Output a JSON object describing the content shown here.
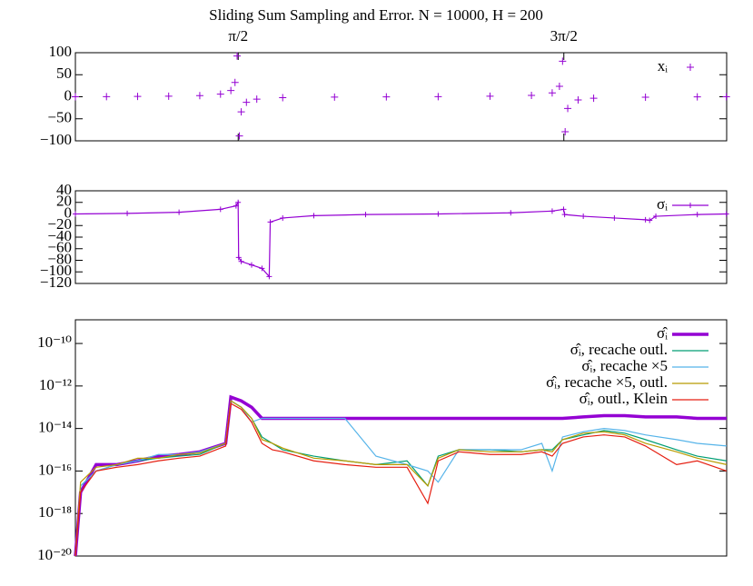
{
  "chart_data": [
    {
      "type": "scatter",
      "title": "Sliding Sum Sampling and Error. N = 10000, H = 200",
      "xlim": [
        0,
        6.2832
      ],
      "xticks": [
        {
          "value": 1.5708,
          "label": "π/2"
        },
        {
          "value": 4.7124,
          "label": "3π/2"
        }
      ],
      "ylim": [
        -100,
        100
      ],
      "yticks": [
        {
          "value": -100,
          "label": "−100"
        },
        {
          "value": -50,
          "label": "−50"
        },
        0,
        50,
        100
      ],
      "legend": "top-right",
      "series": [
        {
          "name": "xᵢ",
          "color": "#9400d3",
          "x": [
            0,
            0.3,
            0.6,
            0.9,
            1.2,
            1.4,
            1.5,
            1.54,
            1.56,
            1.582,
            1.6,
            1.65,
            1.75,
            2.0,
            2.5,
            3.0,
            3.5,
            4.0,
            4.4,
            4.6,
            4.67,
            4.7,
            4.725,
            4.75,
            4.85,
            5.0,
            5.5,
            6.0,
            6.28
          ],
          "values": [
            0,
            0.31,
            0.68,
            1.26,
            2.57,
            5.8,
            14.1,
            32.5,
            92.6,
            -89,
            -34.2,
            -12.6,
            -5.52,
            -2.19,
            -0.75,
            -0.14,
            0.37,
            1.16,
            3.1,
            8.86,
            23.7,
            80.7,
            -79.4,
            -26.6,
            -7.2,
            -3.38,
            -0.99,
            -0.29,
            0
          ]
        }
      ]
    },
    {
      "type": "line",
      "xlim": [
        0,
        6.2832
      ],
      "ylim": [
        -120,
        40
      ],
      "yticks": [
        {
          "value": -120,
          "label": "−120"
        },
        {
          "value": -100,
          "label": "−100"
        },
        {
          "value": -80,
          "label": "−80"
        },
        {
          "value": -60,
          "label": "−60"
        },
        {
          "value": -40,
          "label": "−40"
        },
        {
          "value": -20,
          "label": "−20"
        },
        0,
        20,
        40
      ],
      "legend": "top-right",
      "series": [
        {
          "name": "σᵢ",
          "color": "#9400d3",
          "x": [
            0,
            0.5,
            1.0,
            1.4,
            1.55,
            1.57,
            1.575,
            1.6,
            1.7,
            1.8,
            1.87,
            1.88,
            2.0,
            2.3,
            2.8,
            3.5,
            4.2,
            4.6,
            4.71,
            4.72,
            4.9,
            5.2,
            5.5,
            5.54,
            5.6,
            6.0,
            6.28
          ],
          "values": [
            0,
            1,
            3,
            8,
            14,
            20,
            -75,
            -82,
            -88,
            -94,
            -108,
            -14,
            -7,
            -3,
            -1,
            0,
            2,
            5,
            8,
            -1,
            -4,
            -7,
            -10,
            -11,
            -4,
            -1,
            0
          ]
        }
      ]
    },
    {
      "type": "line",
      "log_scale": true,
      "xlim": [
        0,
        6.2832
      ],
      "ylim": [
        1e-20,
        1.3e-09
      ],
      "yticks": [
        {
          "value": 1e-20,
          "label": "10⁻²⁰"
        },
        {
          "value": 1e-18,
          "label": "10⁻¹⁸"
        },
        {
          "value": 1e-16,
          "label": "10⁻¹⁶"
        },
        {
          "value": 1e-14,
          "label": "10⁻¹⁴"
        },
        {
          "value": 1e-12,
          "label": "10⁻¹²"
        },
        {
          "value": 1e-10,
          "label": "10⁻¹⁰"
        }
      ],
      "legend": "top-right",
      "x": [
        0,
        0.05,
        0.2,
        0.4,
        0.6,
        0.8,
        1.0,
        1.2,
        1.45,
        1.5,
        1.6,
        1.7,
        1.8,
        1.9,
        2.0,
        2.3,
        2.6,
        2.9,
        3.2,
        3.4,
        3.5,
        3.7,
        4.0,
        4.3,
        4.5,
        4.6,
        4.7,
        4.9,
        5.1,
        5.3,
        5.5,
        5.8,
        6.0,
        6.283
      ],
      "series": [
        {
          "name": "σ̂ᵢ",
          "color": "#9400d3",
          "values": [
            1e-20,
            1e-17,
            2e-16,
            2e-16,
            3e-16,
            5e-16,
            6e-16,
            8e-16,
            2e-15,
            3e-13,
            2e-13,
            1e-13,
            3e-14,
            3e-14,
            3e-14,
            3e-14,
            3e-14,
            3e-14,
            3e-14,
            3e-14,
            3e-14,
            3e-14,
            3e-14,
            3e-14,
            3e-14,
            3e-14,
            3e-14,
            3.5e-14,
            4e-14,
            4e-14,
            3.5e-14,
            3.5e-14,
            3e-14,
            3e-14
          ]
        },
        {
          "name": "σ̂ᵢ, recache outl.",
          "color": "#009e73",
          "values": [
            1e-20,
            2e-17,
            1e-16,
            2e-16,
            3e-16,
            4e-16,
            5e-16,
            6e-16,
            2e-15,
            2e-13,
            1e-13,
            3e-14,
            4e-15,
            2e-15,
            1e-15,
            5e-16,
            3e-16,
            2e-16,
            3e-16,
            2e-17,
            5e-16,
            1e-15,
            1e-15,
            8e-16,
            1e-15,
            1e-15,
            3e-15,
            5e-15,
            8e-15,
            6e-15,
            3e-15,
            1e-15,
            5e-16,
            3e-16
          ]
        },
        {
          "name": "σ̂ᵢ, recache ×5",
          "color": "#56b4e9",
          "values": [
            1e-20,
            2e-17,
            1e-16,
            2e-16,
            3e-16,
            6e-16,
            6e-16,
            8e-16,
            2e-15,
            2e-13,
            1e-13,
            2e-14,
            3e-14,
            3e-14,
            3e-14,
            3e-14,
            3e-14,
            5e-16,
            2e-16,
            1e-16,
            3e-17,
            1e-15,
            1e-15,
            1e-15,
            2e-15,
            1e-16,
            4e-15,
            7e-15,
            1e-14,
            8e-15,
            5e-15,
            3e-15,
            2e-15,
            1.5e-15
          ]
        },
        {
          "name": "σ̂ᵢ, recache ×5, outl.",
          "color": "#b89b00",
          "values": [
            1e-20,
            3e-17,
            1.5e-16,
            2e-16,
            4e-16,
            4e-16,
            6e-16,
            7e-16,
            2e-15,
            2e-13,
            1e-13,
            3e-14,
            3e-15,
            2e-15,
            1.2e-15,
            4e-16,
            3e-16,
            2e-16,
            2e-16,
            2e-17,
            4e-16,
            1e-15,
            8e-16,
            8e-16,
            1e-15,
            8e-16,
            3e-15,
            6e-15,
            7e-15,
            5e-15,
            2e-15,
            8e-16,
            4e-16,
            2e-16
          ]
        },
        {
          "name": "σ̂ᵢ, outl., Klein",
          "color": "#e51e10",
          "values": [
            1e-20,
            1e-17,
            1e-16,
            1.5e-16,
            2e-16,
            3e-16,
            4e-16,
            5e-16,
            1.5e-15,
            1.5e-13,
            8e-14,
            2e-14,
            2e-15,
            1e-15,
            8e-16,
            3e-16,
            2e-16,
            1.5e-16,
            1.5e-16,
            3e-18,
            3e-16,
            8e-16,
            6e-16,
            6e-16,
            8e-16,
            5e-16,
            2e-15,
            4e-15,
            5e-15,
            4e-15,
            1.5e-15,
            2e-16,
            3e-16,
            1e-16
          ]
        }
      ]
    }
  ]
}
